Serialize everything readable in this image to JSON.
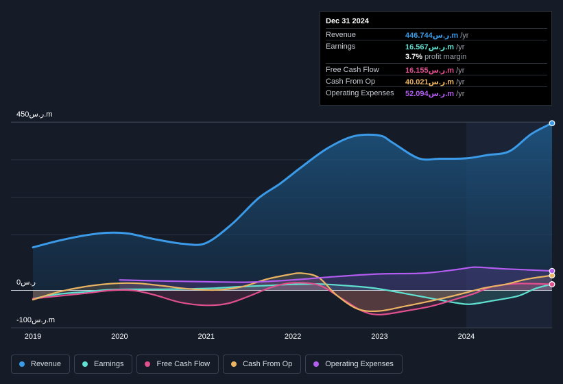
{
  "tooltip": {
    "date": "Dec 31 2024",
    "rows": [
      {
        "label": "Revenue",
        "value": "446.744ر.س.m",
        "unit": "/yr",
        "color": "#3b9be8"
      },
      {
        "label": "Earnings",
        "value": "16.567ر.س.m",
        "unit": "/yr",
        "color": "#5fe0d0"
      },
      {
        "label": "Free Cash Flow",
        "value": "16.155ر.س.m",
        "unit": "/yr",
        "color": "#e0508f"
      },
      {
        "label": "Cash From Op",
        "value": "40.021ر.س.m",
        "unit": "/yr",
        "color": "#ebb463"
      },
      {
        "label": "Operating Expenses",
        "value": "52.094ر.س.m",
        "unit": "/yr",
        "color": "#b35cf0"
      }
    ],
    "margin_value": "3.7%",
    "margin_label": "profit margin"
  },
  "chart_data": {
    "type": "line",
    "ylabel_top": "450ر.س.m",
    "ylabel_zero": "0ر.س",
    "ylabel_bottom": "-100ر.س.m",
    "ylim": [
      -100,
      450
    ],
    "xlim": [
      2019.0,
      2024.99
    ],
    "x_ticks": [
      "2019",
      "2020",
      "2021",
      "2022",
      "2023",
      "2024"
    ],
    "series": [
      {
        "name": "Revenue",
        "color": "#3b9be8",
        "points": [
          [
            2019.0,
            115
          ],
          [
            2019.3,
            133
          ],
          [
            2019.6,
            147
          ],
          [
            2019.85,
            154
          ],
          [
            2020.1,
            152
          ],
          [
            2020.4,
            137
          ],
          [
            2020.75,
            124
          ],
          [
            2021.0,
            127
          ],
          [
            2021.3,
            178
          ],
          [
            2021.6,
            246
          ],
          [
            2021.85,
            285
          ],
          [
            2022.1,
            330
          ],
          [
            2022.4,
            380
          ],
          [
            2022.7,
            412
          ],
          [
            2023.0,
            414
          ],
          [
            2023.15,
            395
          ],
          [
            2023.45,
            353
          ],
          [
            2023.7,
            352
          ],
          [
            2024.0,
            353
          ],
          [
            2024.25,
            362
          ],
          [
            2024.5,
            372
          ],
          [
            2024.75,
            418
          ],
          [
            2024.99,
            447
          ]
        ]
      },
      {
        "name": "Earnings",
        "color": "#5fe0d0",
        "points": [
          [
            2019.0,
            -22
          ],
          [
            2019.3,
            -10
          ],
          [
            2019.6,
            -4
          ],
          [
            2019.9,
            2
          ],
          [
            2020.2,
            3
          ],
          [
            2020.5,
            3
          ],
          [
            2020.8,
            4
          ],
          [
            2021.1,
            6
          ],
          [
            2021.4,
            10
          ],
          [
            2021.7,
            13
          ],
          [
            2022.0,
            16
          ],
          [
            2022.3,
            17
          ],
          [
            2022.6,
            13
          ],
          [
            2022.9,
            7
          ],
          [
            2023.1,
            0
          ],
          [
            2023.4,
            -13
          ],
          [
            2023.7,
            -26
          ],
          [
            2023.9,
            -34
          ],
          [
            2024.05,
            -37
          ],
          [
            2024.3,
            -28
          ],
          [
            2024.6,
            -15
          ],
          [
            2024.8,
            5
          ],
          [
            2024.99,
            16.6
          ]
        ]
      },
      {
        "name": "Free Cash Flow",
        "color": "#e0508f",
        "points": [
          [
            2019.0,
            -22
          ],
          [
            2019.3,
            -15
          ],
          [
            2019.6,
            -8
          ],
          [
            2019.9,
            0
          ],
          [
            2020.15,
            0
          ],
          [
            2020.4,
            -12
          ],
          [
            2020.7,
            -32
          ],
          [
            2021.0,
            -40
          ],
          [
            2021.25,
            -35
          ],
          [
            2021.5,
            -15
          ],
          [
            2021.75,
            8
          ],
          [
            2022.0,
            20
          ],
          [
            2022.3,
            14
          ],
          [
            2022.55,
            -20
          ],
          [
            2022.8,
            -55
          ],
          [
            2023.0,
            -65
          ],
          [
            2023.3,
            -55
          ],
          [
            2023.6,
            -42
          ],
          [
            2023.9,
            -22
          ],
          [
            2024.1,
            -8
          ],
          [
            2024.3,
            10
          ],
          [
            2024.6,
            18
          ],
          [
            2024.99,
            16.2
          ]
        ]
      },
      {
        "name": "Cash From Op",
        "color": "#ebb463",
        "points": [
          [
            2019.0,
            -25
          ],
          [
            2019.3,
            -4
          ],
          [
            2019.6,
            10
          ],
          [
            2019.9,
            18
          ],
          [
            2020.2,
            19
          ],
          [
            2020.5,
            12
          ],
          [
            2020.8,
            4
          ],
          [
            2021.1,
            1
          ],
          [
            2021.4,
            9
          ],
          [
            2021.7,
            30
          ],
          [
            2021.95,
            42
          ],
          [
            2022.1,
            46
          ],
          [
            2022.3,
            34
          ],
          [
            2022.5,
            -12
          ],
          [
            2022.75,
            -50
          ],
          [
            2023.0,
            -55
          ],
          [
            2023.3,
            -42
          ],
          [
            2023.6,
            -28
          ],
          [
            2023.9,
            -12
          ],
          [
            2024.2,
            6
          ],
          [
            2024.45,
            16
          ],
          [
            2024.7,
            30
          ],
          [
            2024.99,
            40
          ]
        ]
      },
      {
        "name": "Operating Expenses",
        "color": "#b35cf0",
        "points": [
          [
            2020.0,
            28
          ],
          [
            2020.5,
            25
          ],
          [
            2021.0,
            23
          ],
          [
            2021.5,
            22
          ],
          [
            2022.0,
            28
          ],
          [
            2022.5,
            37
          ],
          [
            2023.0,
            44
          ],
          [
            2023.5,
            46
          ],
          [
            2023.9,
            56
          ],
          [
            2024.1,
            62
          ],
          [
            2024.4,
            58
          ],
          [
            2024.7,
            55
          ],
          [
            2024.99,
            52
          ]
        ]
      }
    ]
  },
  "legend": [
    {
      "label": "Revenue",
      "color": "#3b9be8"
    },
    {
      "label": "Earnings",
      "color": "#5fe0d0"
    },
    {
      "label": "Free Cash Flow",
      "color": "#e0508f"
    },
    {
      "label": "Cash From Op",
      "color": "#ebb463"
    },
    {
      "label": "Operating Expenses",
      "color": "#b35cf0"
    }
  ]
}
